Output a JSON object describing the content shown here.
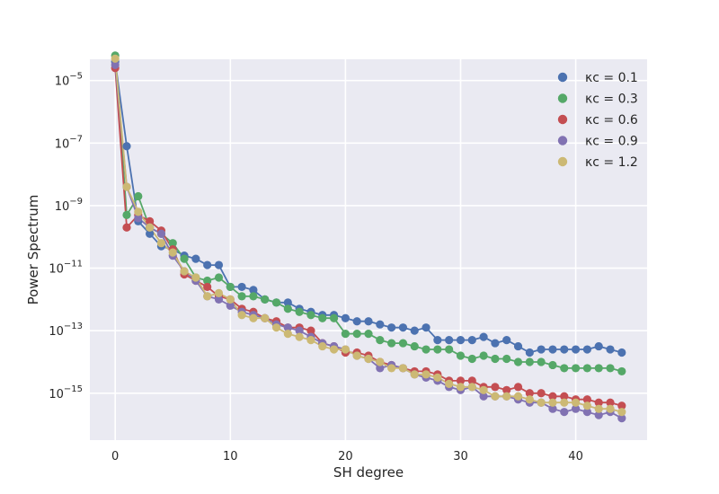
{
  "chart_data": {
    "type": "line",
    "title": "",
    "xlabel": "SH degree",
    "ylabel": "Power Spectrum",
    "yscale": "log",
    "xlim": [
      -2.2,
      46.2
    ],
    "ylim_log10": [
      -16.5,
      -4.32
    ],
    "xticks": [
      0,
      10,
      20,
      30,
      40
    ],
    "yticks_exp": [
      -5,
      -7,
      -9,
      -11,
      -13,
      -15
    ],
    "grid": true,
    "legend_position": "top-right",
    "x": [
      0,
      1,
      2,
      3,
      4,
      5,
      6,
      7,
      8,
      9,
      10,
      11,
      12,
      13,
      14,
      15,
      16,
      17,
      18,
      19,
      20,
      21,
      22,
      23,
      24,
      25,
      26,
      27,
      28,
      29,
      30,
      31,
      32,
      33,
      34,
      35,
      36,
      37,
      38,
      39,
      40,
      41,
      42,
      43,
      44
    ],
    "series": [
      {
        "name": "κc = 0.1",
        "color": "#4c72b0",
        "log10_values": [
          -4.4,
          -7.1,
          -9.5,
          -9.9,
          -10.3,
          -10.4,
          -10.6,
          -10.7,
          -10.9,
          -10.9,
          -11.6,
          -11.6,
          -11.7,
          -12.0,
          -12.1,
          -12.1,
          -12.3,
          -12.4,
          -12.5,
          -12.5,
          -12.6,
          -12.7,
          -12.7,
          -12.8,
          -12.9,
          -12.9,
          -13.0,
          -12.9,
          -13.3,
          -13.3,
          -13.3,
          -13.3,
          -13.2,
          -13.4,
          -13.3,
          -13.5,
          -13.7,
          -13.6,
          -13.6,
          -13.6,
          -13.6,
          -13.6,
          -13.5,
          -13.6,
          -13.7
        ]
      },
      {
        "name": "κc = 0.3",
        "color": "#55a868",
        "log10_values": [
          -4.2,
          -9.3,
          -8.7,
          -9.7,
          -9.9,
          -10.2,
          -10.7,
          -11.3,
          -11.4,
          -11.3,
          -11.6,
          -11.9,
          -11.9,
          -12.0,
          -12.1,
          -12.3,
          -12.4,
          -12.5,
          -12.6,
          -12.6,
          -13.1,
          -13.1,
          -13.1,
          -13.3,
          -13.4,
          -13.4,
          -13.5,
          -13.6,
          -13.6,
          -13.6,
          -13.8,
          -13.9,
          -13.8,
          -13.9,
          -13.9,
          -14.0,
          -14.0,
          -14.0,
          -14.1,
          -14.2,
          -14.2,
          -14.2,
          -14.2,
          -14.2,
          -14.3
        ]
      },
      {
        "name": "κc = 0.6",
        "color": "#c44e52",
        "log10_values": [
          -4.6,
          -9.7,
          -9.3,
          -9.5,
          -9.8,
          -10.4,
          -11.2,
          -11.4,
          -11.6,
          -11.9,
          -12.0,
          -12.3,
          -12.4,
          -12.6,
          -12.7,
          -12.9,
          -12.9,
          -13.0,
          -13.4,
          -13.5,
          -13.7,
          -13.7,
          -13.8,
          -14.0,
          -14.1,
          -14.2,
          -14.3,
          -14.3,
          -14.4,
          -14.6,
          -14.6,
          -14.6,
          -14.8,
          -14.8,
          -14.9,
          -14.8,
          -15.0,
          -15.0,
          -15.1,
          -15.1,
          -15.2,
          -15.2,
          -15.3,
          -15.3,
          -15.4
        ]
      },
      {
        "name": "κc = 0.9",
        "color": "#8172b2",
        "log10_values": [
          -4.5,
          -8.4,
          -9.4,
          -9.7,
          -9.9,
          -10.6,
          -11.1,
          -11.4,
          -11.9,
          -12.0,
          -12.2,
          -12.4,
          -12.5,
          -12.6,
          -12.8,
          -12.9,
          -13.0,
          -13.2,
          -13.4,
          -13.5,
          -13.6,
          -13.8,
          -13.9,
          -14.2,
          -14.1,
          -14.2,
          -14.4,
          -14.5,
          -14.6,
          -14.8,
          -14.9,
          -14.8,
          -15.1,
          -15.1,
          -15.1,
          -15.2,
          -15.3,
          -15.3,
          -15.5,
          -15.6,
          -15.5,
          -15.6,
          -15.7,
          -15.6,
          -15.8
        ]
      },
      {
        "name": "κc = 1.2",
        "color": "#ccb974",
        "log10_values": [
          -4.3,
          -8.4,
          -9.2,
          -9.7,
          -10.2,
          -10.5,
          -11.1,
          -11.3,
          -11.9,
          -11.8,
          -12.0,
          -12.5,
          -12.6,
          -12.6,
          -12.9,
          -13.1,
          -13.2,
          -13.3,
          -13.5,
          -13.6,
          -13.6,
          -13.8,
          -13.9,
          -14.0,
          -14.2,
          -14.2,
          -14.4,
          -14.4,
          -14.5,
          -14.7,
          -14.8,
          -14.8,
          -14.9,
          -15.1,
          -15.1,
          -15.1,
          -15.2,
          -15.3,
          -15.3,
          -15.3,
          -15.3,
          -15.4,
          -15.5,
          -15.5,
          -15.6
        ]
      }
    ]
  }
}
